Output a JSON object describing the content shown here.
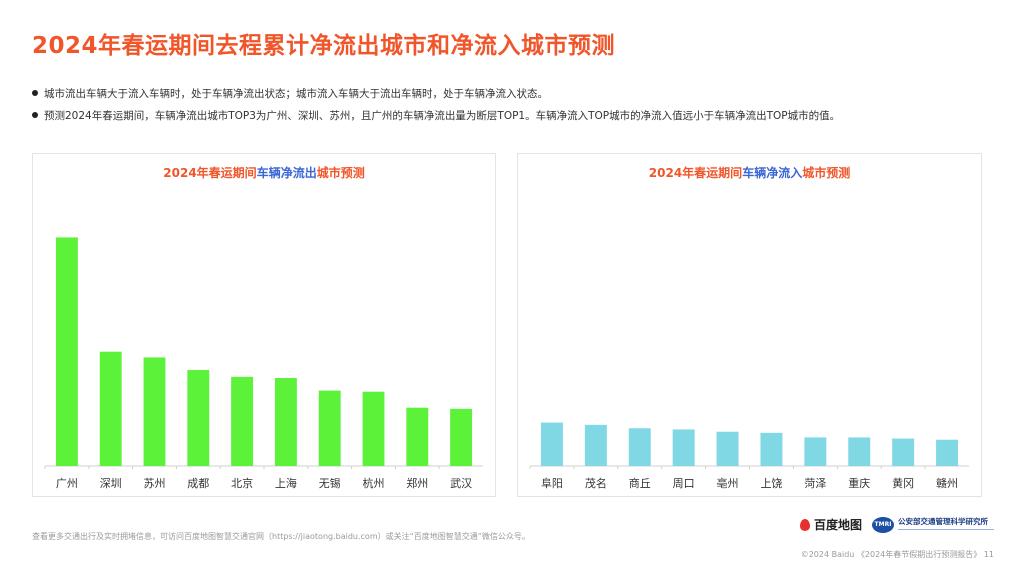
{
  "page": {
    "title": "2024年春运期间去程累计净流出城市和净流入城市预测",
    "bullets": [
      "城市流出车辆大于流入车辆时，处于车辆净流出状态；城市流入车辆大于流出车辆时，处于车辆净流入状态。",
      "预测2024年春运期间，车辆净流出城市TOP3为广州、深圳、苏州，且广州的车辆净流出量为断层TOP1。车辆净流入TOP城市的净流入值远小于车辆净流出TOP城市的值。"
    ],
    "footnote": "查看更多交通出行及实时拥堵信息，可访问百度地图智慧交通官网（https://jiaotong.baidu.com）或关注“百度地图智慧交通”微信公众号。",
    "logos": {
      "baidu_name": "百度地图",
      "tmri_badge": "TMRI",
      "tmri_name": "公安部交通管理科学研究所"
    },
    "copyright": "©2024 Baidu 《2024年春节假期出行预测报告》 11",
    "colors": {
      "accent_orange": "#f0562a",
      "accent_blue": "#3b66d6",
      "outflow_bar": "#5cf23a",
      "inflow_bar": "#7fd8e3"
    }
  },
  "chart_data": [
    {
      "type": "bar",
      "title_parts": [
        "2024年春运期间",
        "车辆净流出",
        "城市预测"
      ],
      "categories": [
        "广州",
        "深圳",
        "苏州",
        "成都",
        "北京",
        "上海",
        "无锡",
        "杭州",
        "郑州",
        "武汉"
      ],
      "values": [
        100,
        50,
        47.5,
        42,
        39,
        38.5,
        33,
        32.5,
        25.5,
        25
      ],
      "ylim": [
        0,
        105
      ],
      "grid": false,
      "color": "#5cf23a"
    },
    {
      "type": "bar",
      "title_parts": [
        "2024年春运期间",
        "车辆净流入",
        "城市预测"
      ],
      "categories": [
        "阜阳",
        "茂名",
        "商丘",
        "周口",
        "亳州",
        "上饶",
        "菏泽",
        "重庆",
        "黄冈",
        "赣州"
      ],
      "values": [
        19,
        18,
        16.5,
        16,
        15,
        14.5,
        12.5,
        12.5,
        12,
        11.5
      ],
      "ylim": [
        0,
        105
      ],
      "grid": false,
      "color": "#7fd8e3"
    }
  ]
}
